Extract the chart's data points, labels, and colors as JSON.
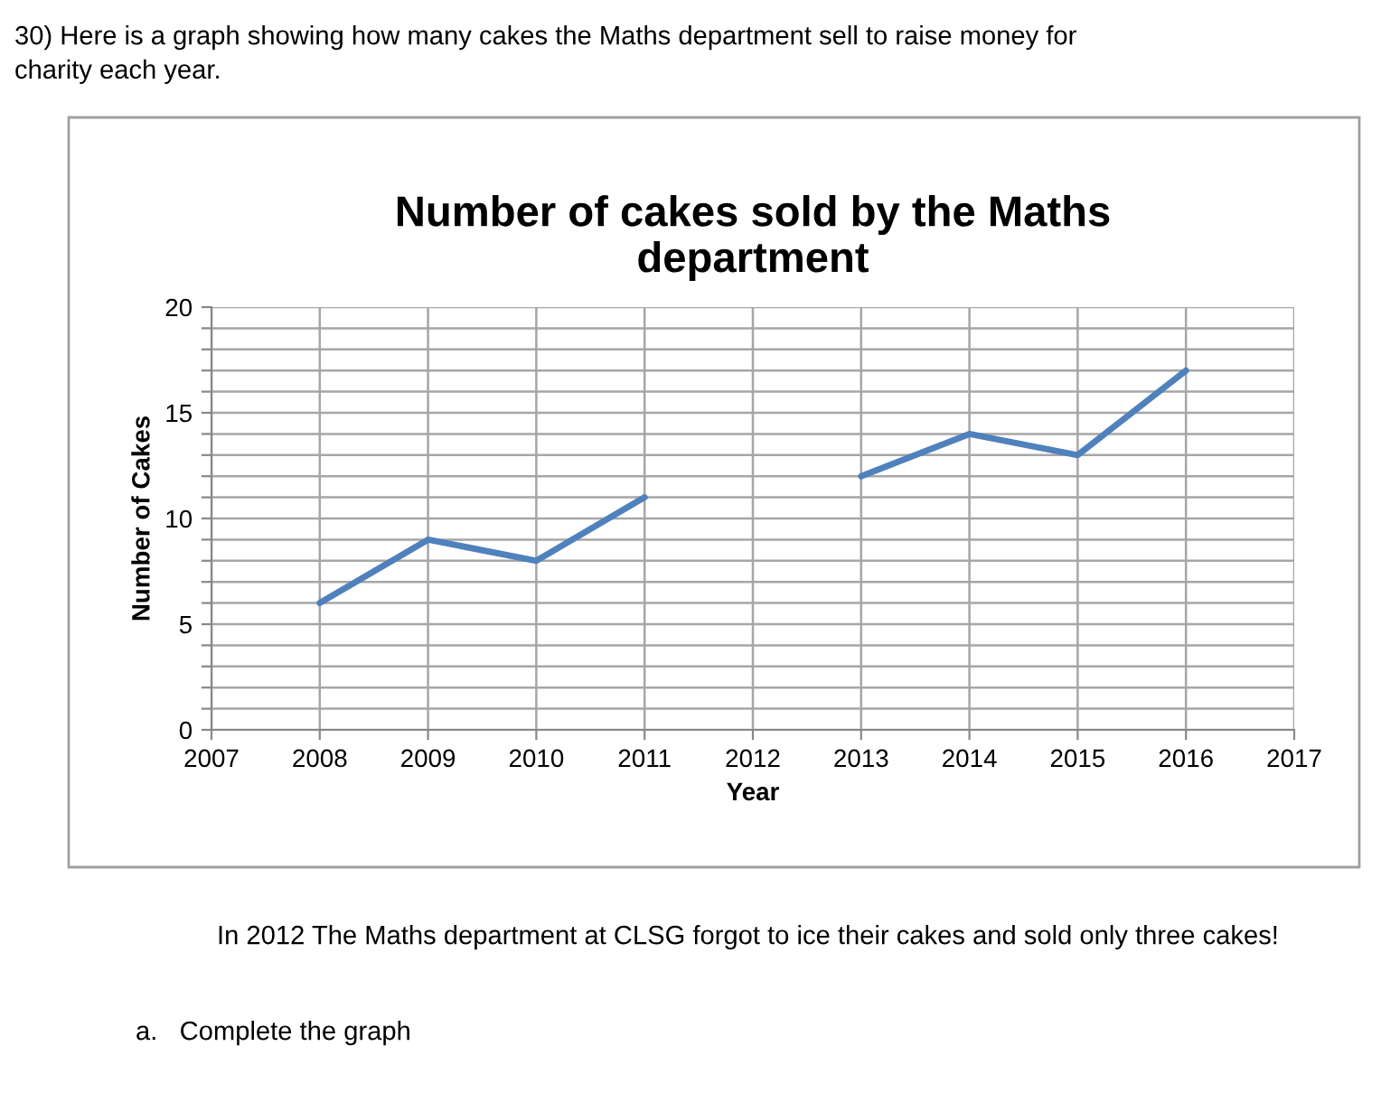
{
  "chart_data": {
    "type": "line",
    "title": "Number of cakes sold by the Maths\ndepartment",
    "xlabel": "Year",
    "ylabel": "Number of Cakes",
    "x": [
      2008,
      2009,
      2010,
      2011,
      2012,
      2013,
      2014,
      2015,
      2016
    ],
    "series": [
      {
        "color": "#4f81bd",
        "values": [
          6,
          9,
          8,
          11,
          null,
          12,
          14,
          13,
          17
        ]
      }
    ],
    "xlim": [
      2007,
      2017
    ],
    "xticks": [
      2007,
      2008,
      2009,
      2010,
      2011,
      2012,
      2013,
      2014,
      2015,
      2016,
      2017
    ],
    "ylim": [
      0,
      20
    ],
    "yticks": [
      0,
      {
        "value": 1,
        "label": null
      },
      {
        "value": 2,
        "label": null
      },
      {
        "value": 3,
        "label": null
      },
      {
        "value": 4,
        "label": null
      },
      5,
      {
        "value": 6,
        "label": null
      },
      {
        "value": 7,
        "label": null
      },
      {
        "value": 8,
        "label": null
      },
      {
        "value": 9,
        "label": null
      },
      10,
      {
        "value": 11,
        "label": null
      },
      {
        "value": 12,
        "label": null
      },
      {
        "value": 13,
        "label": null
      },
      {
        "value": 14,
        "label": null
      },
      15,
      {
        "value": 16,
        "label": null
      },
      {
        "value": 17,
        "label": null
      },
      {
        "value": 18,
        "label": null
      },
      {
        "value": 19,
        "label": null
      },
      20
    ],
    "grid": true,
    "legend": false,
    "marker": "none",
    "line_style": "solid",
    "annotations": [
      "30) Here is a graph showing how many cakes the Maths department sell to raise money for\ncharity each year.",
      "In 2012 The Maths department at CLSG forgot to ice their cakes and sold only three cakes!",
      "a.   Complete the graph"
    ]
  }
}
